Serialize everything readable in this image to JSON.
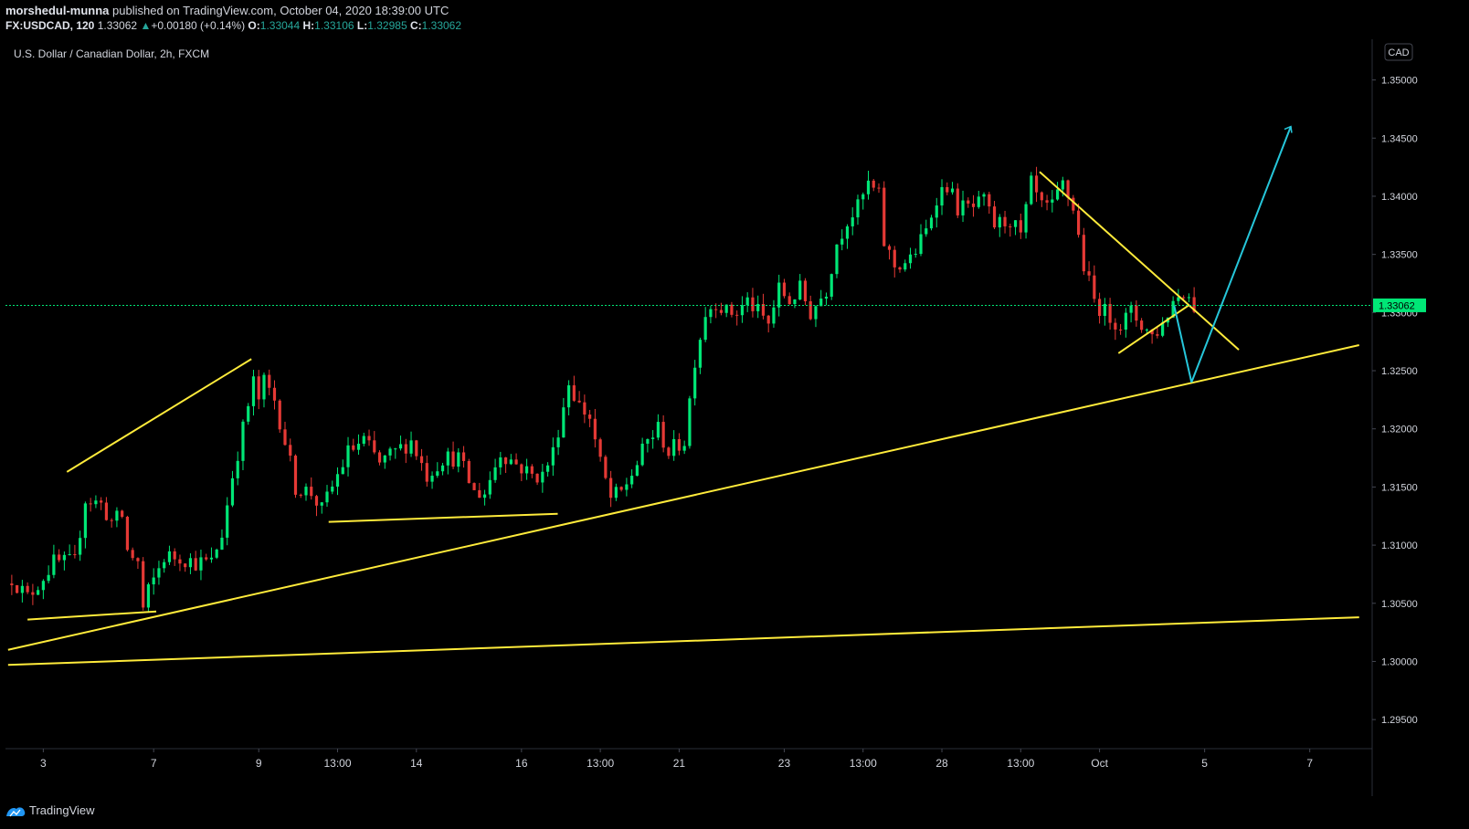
{
  "header": {
    "author": "morshedul-munna",
    "published_text": " published on TradingView.com, October 04, 2020 18:39:00 UTC",
    "symbol": "FX:USDCAD, 120",
    "last": "1.33062",
    "change_arrow": "▲",
    "change": "+0.00180 (+0.14%)",
    "o_label": "O:",
    "o": "1.33044",
    "h_label": "H:",
    "h": "1.33106",
    "l_label": "L:",
    "l": "1.32985",
    "c_label": "C:",
    "c": "1.33062"
  },
  "footer": {
    "brand": "TradingView",
    "icon": "tradingview-logo-icon"
  },
  "colors": {
    "bg": "#000000",
    "up": "#00e676",
    "down": "#e53935",
    "trendline": "#ffeb3b",
    "projection": "#26c6da",
    "price_line": "#00e676"
  },
  "chart_data": {
    "type": "candlestick",
    "title": "U.S. Dollar / Canadian Dollar, 2h, FXCM",
    "currency_label": "CAD",
    "ylim": [
      1.2925,
      1.3535
    ],
    "y_ticks": [
      "1.29500",
      "1.30000",
      "1.30500",
      "1.31000",
      "1.31500",
      "1.32000",
      "1.32500",
      "1.33000",
      "1.33500",
      "1.34000",
      "1.34500",
      "1.35000"
    ],
    "x_ticks": [
      "3",
      "7",
      "9",
      "13:00",
      "14",
      "16",
      "13:00",
      "21",
      "23",
      "13:00",
      "28",
      "13:00",
      "Oct",
      "5",
      "7"
    ],
    "x_tick_index": [
      6,
      27,
      47,
      62,
      77,
      97,
      112,
      127,
      147,
      162,
      177,
      192,
      207,
      227,
      247
    ],
    "last_price": 1.33062,
    "last_price_label": "1.33062",
    "candle_count": 226,
    "path": [
      [
        0,
        1.3072
      ],
      [
        3,
        1.3055
      ],
      [
        8,
        1.3085
      ],
      [
        12,
        1.3085
      ],
      [
        14,
        1.314
      ],
      [
        17,
        1.3135
      ],
      [
        19,
        1.312
      ],
      [
        21,
        1.3125
      ],
      [
        22,
        1.3095
      ],
      [
        24,
        1.3085
      ],
      [
        25,
        1.3045
      ],
      [
        26,
        1.306
      ],
      [
        29,
        1.309
      ],
      [
        32,
        1.309
      ],
      [
        35,
        1.3085
      ],
      [
        38,
        1.3085
      ],
      [
        40,
        1.311
      ],
      [
        42,
        1.316
      ],
      [
        44,
        1.32
      ],
      [
        46,
        1.324
      ],
      [
        47,
        1.3225
      ],
      [
        48,
        1.324
      ],
      [
        50,
        1.3225
      ],
      [
        52,
        1.319
      ],
      [
        54,
        1.315
      ],
      [
        57,
        1.3145
      ],
      [
        59,
        1.313
      ],
      [
        61,
        1.315
      ],
      [
        64,
        1.318
      ],
      [
        67,
        1.319
      ],
      [
        70,
        1.317
      ],
      [
        73,
        1.318
      ],
      [
        76,
        1.319
      ],
      [
        79,
        1.316
      ],
      [
        82,
        1.3175
      ],
      [
        85,
        1.3175
      ],
      [
        88,
        1.3145
      ],
      [
        90,
        1.3145
      ],
      [
        93,
        1.318
      ],
      [
        96,
        1.317
      ],
      [
        99,
        1.316
      ],
      [
        101,
        1.316
      ],
      [
        103,
        1.318
      ],
      [
        106,
        1.324
      ],
      [
        108,
        1.322
      ],
      [
        110,
        1.321
      ],
      [
        112,
        1.317
      ],
      [
        114,
        1.314
      ],
      [
        116,
        1.3145
      ],
      [
        119,
        1.317
      ],
      [
        121,
        1.319
      ],
      [
        123,
        1.32
      ],
      [
        125,
        1.318
      ],
      [
        128,
        1.319
      ],
      [
        130,
        1.326
      ],
      [
        132,
        1.33
      ],
      [
        134,
        1.331
      ],
      [
        136,
        1.33
      ],
      [
        138,
        1.33
      ],
      [
        140,
        1.331
      ],
      [
        142,
        1.33
      ],
      [
        144,
        1.329
      ],
      [
        146,
        1.332
      ],
      [
        148,
        1.331
      ],
      [
        150,
        1.332
      ],
      [
        152,
        1.33
      ],
      [
        155,
        1.332
      ],
      [
        157,
        1.336
      ],
      [
        159,
        1.338
      ],
      [
        161,
        1.339
      ],
      [
        163,
        1.341
      ],
      [
        165,
        1.34
      ],
      [
        166,
        1.336
      ],
      [
        168,
        1.334
      ],
      [
        171,
        1.3345
      ],
      [
        174,
        1.337
      ],
      [
        176,
        1.34
      ],
      [
        178,
        1.341
      ],
      [
        180,
        1.339
      ],
      [
        183,
        1.339
      ],
      [
        185,
        1.3395
      ],
      [
        187,
        1.3375
      ],
      [
        190,
        1.338
      ],
      [
        192,
        1.3365
      ],
      [
        194,
        1.341
      ],
      [
        196,
        1.339
      ],
      [
        198,
        1.339
      ],
      [
        200,
        1.341
      ],
      [
        202,
        1.339
      ],
      [
        204,
        1.334
      ],
      [
        206,
        1.331
      ],
      [
        208,
        1.33
      ],
      [
        211,
        1.329
      ],
      [
        213,
        1.33
      ],
      [
        215,
        1.329
      ],
      [
        217,
        1.328
      ],
      [
        219,
        1.329
      ],
      [
        221,
        1.331
      ],
      [
        223,
        1.332
      ],
      [
        225,
        1.3306
      ]
    ]
  }
}
